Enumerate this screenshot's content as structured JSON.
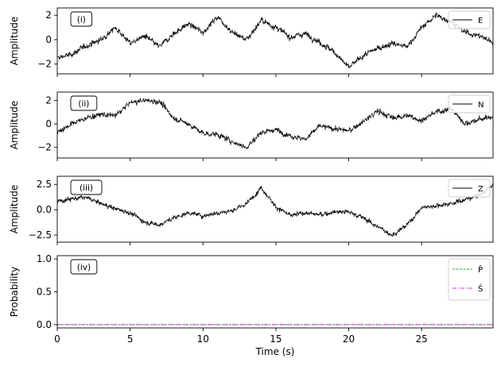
{
  "chart_data": [
    {
      "type": "line",
      "panel_label": "(i)",
      "ylabel": "Amplitude",
      "xlim": [
        0,
        29.9
      ],
      "ylim": [
        -2.8,
        2.6
      ],
      "yticks": [
        -2,
        0,
        2
      ],
      "legend": {
        "position": "top-right",
        "entries": [
          {
            "name": "E",
            "color": "#000000",
            "style": "solid"
          }
        ]
      },
      "series": [
        {
          "name": "E",
          "color": "#000000",
          "x": [
            0,
            1,
            2,
            3,
            4,
            5,
            6,
            7,
            8,
            9,
            10,
            11,
            12,
            13,
            14,
            15,
            16,
            17,
            18,
            19,
            20,
            21,
            22,
            23,
            24,
            25,
            26,
            27,
            28,
            29,
            29.9
          ],
          "y": [
            -1.5,
            -1.2,
            -0.5,
            0.0,
            1.0,
            -0.3,
            0.3,
            -0.6,
            0.5,
            1.3,
            0.6,
            1.9,
            0.6,
            0.0,
            1.6,
            1.0,
            0.2,
            0.5,
            -0.2,
            -1.0,
            -2.3,
            -1.3,
            -0.7,
            -0.3,
            -0.6,
            1.0,
            2.0,
            1.5,
            0.6,
            0.3,
            -0.2
          ]
        }
      ]
    },
    {
      "type": "line",
      "panel_label": "(ii)",
      "ylabel": "Amplitude",
      "xlim": [
        0,
        29.9
      ],
      "ylim": [
        -2.9,
        2.7
      ],
      "yticks": [
        -2,
        0,
        2
      ],
      "legend": {
        "position": "top-right",
        "entries": [
          {
            "name": "N",
            "color": "#000000",
            "style": "solid"
          }
        ]
      },
      "series": [
        {
          "name": "N",
          "color": "#000000",
          "x": [
            0,
            1,
            2,
            3,
            4,
            5,
            6,
            7,
            8,
            9,
            10,
            11,
            12,
            13,
            14,
            15,
            16,
            17,
            18,
            19,
            20,
            21,
            22,
            23,
            24,
            25,
            26,
            27,
            28,
            29,
            29.9
          ],
          "y": [
            -0.7,
            0.0,
            0.5,
            0.8,
            0.7,
            1.8,
            2.0,
            1.9,
            0.5,
            0.0,
            -0.8,
            -0.9,
            -1.5,
            -2.0,
            -0.7,
            -0.5,
            -1.0,
            -1.3,
            -0.2,
            -0.4,
            -0.6,
            0.2,
            1.1,
            0.5,
            0.7,
            0.3,
            1.0,
            1.3,
            0.0,
            0.4,
            0.6
          ]
        }
      ]
    },
    {
      "type": "line",
      "panel_label": "(iii)",
      "ylabel": "Amplitude",
      "xlim": [
        0,
        29.9
      ],
      "ylim": [
        -3.2,
        3.3
      ],
      "yticks": [
        -2.5,
        0.0,
        2.5
      ],
      "legend": {
        "position": "top-right",
        "entries": [
          {
            "name": "Z",
            "color": "#000000",
            "style": "solid"
          }
        ]
      },
      "series": [
        {
          "name": "Z",
          "color": "#000000",
          "x": [
            0,
            1,
            2,
            3,
            4,
            5,
            6,
            7,
            8,
            9,
            10,
            11,
            12,
            13,
            14,
            15,
            16,
            17,
            18,
            19,
            20,
            21,
            22,
            23,
            24,
            25,
            26,
            27,
            28,
            29,
            29.9
          ],
          "y": [
            0.8,
            1.1,
            1.2,
            0.6,
            0.1,
            -0.3,
            -1.2,
            -1.5,
            -0.8,
            -0.3,
            -0.6,
            -0.3,
            -0.1,
            0.6,
            2.2,
            0.3,
            -0.6,
            -0.3,
            -0.5,
            -0.2,
            -0.2,
            -0.8,
            -1.7,
            -2.5,
            -1.5,
            0.2,
            0.4,
            0.6,
            1.0,
            1.5,
            2.4
          ]
        }
      ]
    },
    {
      "type": "line",
      "panel_label": "(iv)",
      "ylabel": "Probability",
      "xlabel": "Time (s)",
      "xlim": [
        0,
        29.9
      ],
      "ylim": [
        -0.05,
        1.05
      ],
      "yticks": [
        0.0,
        0.5,
        1.0
      ],
      "xticks": [
        0,
        5,
        10,
        15,
        20,
        25
      ],
      "legend": {
        "position": "top-right",
        "entries": [
          {
            "name": "P̂",
            "color": "#2ca02c",
            "style": "dashed"
          },
          {
            "name": "Ŝ",
            "color": "#d62ad6",
            "style": "dashdot"
          }
        ]
      },
      "series": [
        {
          "name": "P̂",
          "color": "#2ca02c",
          "x": [
            0,
            29.9
          ],
          "y": [
            0.0,
            0.0
          ]
        },
        {
          "name": "Ŝ",
          "color": "#d62ad6",
          "x": [
            0,
            29.9
          ],
          "y": [
            0.0,
            0.0
          ]
        }
      ]
    }
  ]
}
